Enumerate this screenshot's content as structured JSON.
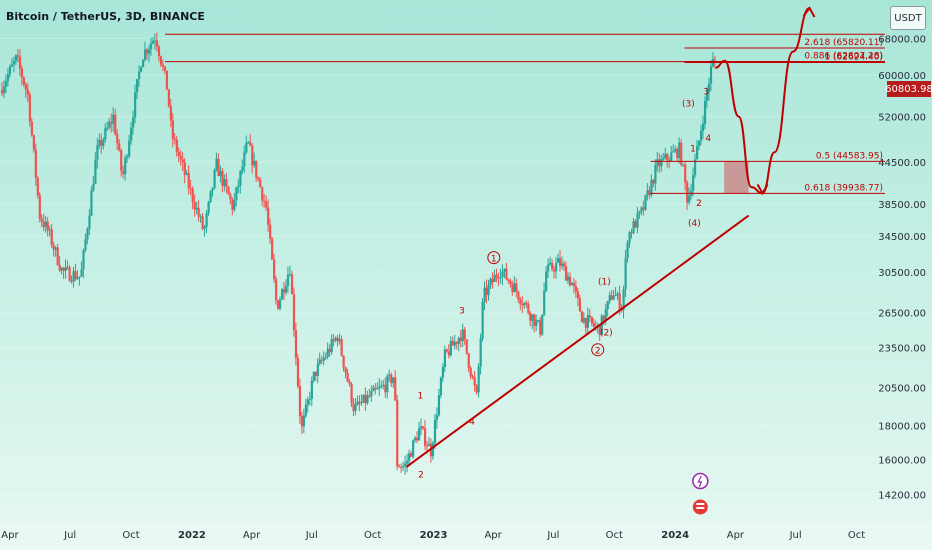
{
  "title": "Bitcoin / TetherUS, 3D, BINANCE",
  "currency_button": "USDT",
  "current_price_label": "60803.98",
  "colors": {
    "bull": "#26a69a",
    "bear": "#ef5350",
    "annot": "#c00000",
    "fib": "#c00000",
    "zone": "#c98b8b",
    "icon1": "#9c27b0",
    "icon2": "#e53935"
  },
  "chart_data": {
    "type": "candlestick",
    "symbol": "Bitcoin / TetherUS",
    "interval": "3D",
    "exchange": "BINANCE",
    "y_scale": "log",
    "ylim": [
      13000,
      75000
    ],
    "xlim": [
      "2021-03-17",
      "2024-11-13"
    ],
    "y_ticks": [
      14200,
      16000,
      18000,
      20500,
      23500,
      26500,
      30500,
      34500,
      38500,
      44500,
      52000,
      60000,
      68000
    ],
    "y_tick_labels": [
      "14200.00",
      "16000.00",
      "18000.00",
      "20500.00",
      "23500.00",
      "26500.00",
      "30500.00",
      "34500.00",
      "38500.00",
      "44500.00",
      "52000.00",
      "60000.00",
      "68000.00"
    ],
    "x_ticks": [
      {
        "label": "Apr",
        "date": "2021-04-01"
      },
      {
        "label": "Jul",
        "date": "2021-07-01"
      },
      {
        "label": "Oct",
        "date": "2021-10-01"
      },
      {
        "label": "2022",
        "date": "2022-01-01",
        "bold": true
      },
      {
        "label": "Apr",
        "date": "2022-04-01"
      },
      {
        "label": "Jul",
        "date": "2022-07-01"
      },
      {
        "label": "Oct",
        "date": "2022-10-01"
      },
      {
        "label": "2023",
        "date": "2023-01-01",
        "bold": true
      },
      {
        "label": "Apr",
        "date": "2023-04-01"
      },
      {
        "label": "Jul",
        "date": "2023-07-01"
      },
      {
        "label": "Oct",
        "date": "2023-10-01"
      },
      {
        "label": "2024",
        "date": "2024-01-01",
        "bold": true
      },
      {
        "label": "Apr",
        "date": "2024-04-01"
      },
      {
        "label": "Jul",
        "date": "2024-07-01"
      },
      {
        "label": "Oct",
        "date": "2024-10-01"
      }
    ],
    "price_keypoints": [
      [
        "2021-03-20",
        57000
      ],
      [
        "2021-04-14",
        63500
      ],
      [
        "2021-05-01",
        56000
      ],
      [
        "2021-05-19",
        37000
      ],
      [
        "2021-06-01",
        35000
      ],
      [
        "2021-06-22",
        30500
      ],
      [
        "2021-07-20",
        30000
      ],
      [
        "2021-08-13",
        46000
      ],
      [
        "2021-09-07",
        52000
      ],
      [
        "2021-09-21",
        42000
      ],
      [
        "2021-10-20",
        64000
      ],
      [
        "2021-11-10",
        68700
      ],
      [
        "2021-11-28",
        57000
      ],
      [
        "2021-12-04",
        49000
      ],
      [
        "2022-01-22",
        35000
      ],
      [
        "2022-02-10",
        44000
      ],
      [
        "2022-03-07",
        38000
      ],
      [
        "2022-03-29",
        47500
      ],
      [
        "2022-04-26",
        38000
      ],
      [
        "2022-05-12",
        27000
      ],
      [
        "2022-06-01",
        31000
      ],
      [
        "2022-06-18",
        17600
      ],
      [
        "2022-07-08",
        21500
      ],
      [
        "2022-08-12",
        24500
      ],
      [
        "2022-09-06",
        19000
      ],
      [
        "2022-09-28",
        19800
      ],
      [
        "2022-10-24",
        20700
      ],
      [
        "2022-11-06",
        21400
      ],
      [
        "2022-11-09",
        15800
      ],
      [
        "2022-11-21",
        15600
      ],
      [
        "2022-12-14",
        17800
      ],
      [
        "2022-12-31",
        16500
      ],
      [
        "2023-01-21",
        22800
      ],
      [
        "2023-02-16",
        24800
      ],
      [
        "2023-03-10",
        19800
      ],
      [
        "2023-03-20",
        28000
      ],
      [
        "2023-04-14",
        30800
      ],
      [
        "2023-05-05",
        29000
      ],
      [
        "2023-06-14",
        25000
      ],
      [
        "2023-06-23",
        30500
      ],
      [
        "2023-07-13",
        31500
      ],
      [
        "2023-08-01",
        29300
      ],
      [
        "2023-08-17",
        26000
      ],
      [
        "2023-09-11",
        25000
      ],
      [
        "2023-10-02",
        28500
      ],
      [
        "2023-10-16",
        27000
      ],
      [
        "2023-10-24",
        34500
      ],
      [
        "2023-11-15",
        37500
      ],
      [
        "2023-12-08",
        44000
      ],
      [
        "2024-01-11",
        46500
      ],
      [
        "2024-01-23",
        38800
      ],
      [
        "2024-02-09",
        47800
      ],
      [
        "2024-02-15",
        52000
      ],
      [
        "2024-02-28",
        62000
      ],
      [
        "2024-03-02",
        63000
      ]
    ],
    "annotations": {
      "fib_levels": [
        {
          "label": "2.618 (65820.11)",
          "value": 65820.11
        },
        {
          "label": "0.886 (62807.28)",
          "value": 62807.28
        },
        {
          "label": "1 (62624.40)",
          "value": 62624.4
        },
        {
          "label": "0.5 (44583.95)",
          "value": 44583.95
        },
        {
          "label": "0.618 (39938.77)",
          "value": 39938.77
        }
      ],
      "horizontal_levels": [
        62800,
        69000
      ],
      "support_zone": {
        "from": "2024-03-15",
        "to": "2024-04-21",
        "low": 39938.77,
        "high": 44583.95
      },
      "trendline": {
        "from": [
          "2022-11-21",
          15600
        ],
        "to": [
          "2024-04-21",
          37000
        ]
      },
      "projected_path": [
        [
          "2024-03-02",
          61500
        ],
        [
          "2024-03-16",
          63000
        ],
        [
          "2024-04-06",
          52000
        ],
        [
          "2024-04-25",
          40800
        ],
        [
          "2024-05-12",
          39938.77
        ],
        [
          "2024-05-30",
          46000
        ],
        [
          "2024-06-27",
          65000
        ],
        [
          "2024-07-22",
          75500
        ]
      ],
      "wave_labels": [
        {
          "text": "1",
          "date": "2022-12-12",
          "price": 19800,
          "circled": false
        },
        {
          "text": "2",
          "date": "2022-12-13",
          "price": 15100,
          "circled": false
        },
        {
          "text": "3",
          "date": "2023-02-13",
          "price": 26500,
          "circled": false
        },
        {
          "text": "4",
          "date": "2023-02-28",
          "price": 18100,
          "circled": false
        },
        {
          "text": "1",
          "date": "2023-04-02",
          "price": 31700,
          "circled": true
        },
        {
          "text": "2",
          "date": "2023-09-06",
          "price": 23100,
          "circled": true
        },
        {
          "text": "(1)",
          "date": "2023-09-16",
          "price": 29300,
          "circled": false
        },
        {
          "text": "(2)",
          "date": "2023-09-19",
          "price": 24600,
          "circled": false
        },
        {
          "text": "(3)",
          "date": "2024-01-21",
          "price": 54000,
          "circled": false
        },
        {
          "text": "1",
          "date": "2024-01-28",
          "price": 46300,
          "circled": false
        },
        {
          "text": "2",
          "date": "2024-02-06",
          "price": 38400,
          "circled": false
        },
        {
          "text": "3",
          "date": "2024-02-17",
          "price": 56300,
          "circled": false
        },
        {
          "text": "4",
          "date": "2024-02-20",
          "price": 48000,
          "circled": false
        },
        {
          "text": "(4)",
          "date": "2024-01-30",
          "price": 35800,
          "circled": false
        }
      ]
    }
  }
}
